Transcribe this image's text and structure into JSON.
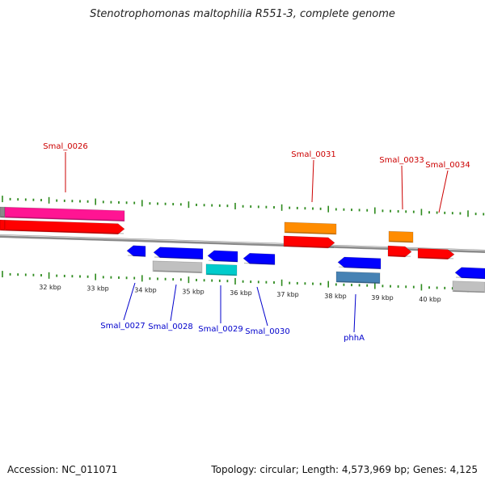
{
  "title": "Stenotrophomonas maltophilia R551-3, complete genome",
  "accession": "Accession: NC_011071",
  "summary": "Topology: circular; Length: 4,573,969 bp; Genes: 4,125",
  "colors": {
    "backbone": "#8a8a8a",
    "tick": "#2e8b1e",
    "top_label": "#cc0000",
    "bottom_label": "#0000cc",
    "pink": "#ff1493",
    "red": "#ff0000",
    "orange": "#ff8c00",
    "blue": "#0000ff",
    "grey": "#c0c0c0",
    "cyan": "#00cccc",
    "steelblue": "#4682b4"
  },
  "scale_labels": [
    "32 kbp",
    "33 kbp",
    "34 kbp",
    "35 kbp",
    "36 kbp",
    "37 kbp",
    "38 kbp",
    "39 kbp",
    "40 kbp"
  ],
  "gene_labels_top": [
    "Smal_0026",
    "Smal_0031",
    "Smal_0033",
    "Smal_0034"
  ],
  "gene_labels_bottom": [
    "Smal_0027",
    "Smal_0028",
    "Smal_0029",
    "Smal_0030",
    "phhA"
  ]
}
